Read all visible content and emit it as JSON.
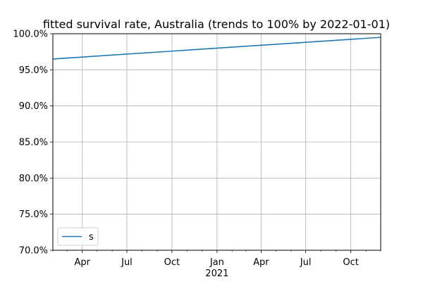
{
  "chart_data": {
    "type": "line",
    "title": "fitted survival rate, Australia (trends to 100% by 2022-01-01)",
    "xlabel": "",
    "ylabel": "",
    "x_range": [
      "2020-02-01",
      "2021-12-01"
    ],
    "y_range": [
      0.7,
      1.0
    ],
    "y_scale": "linear",
    "y_format": "percent_1dp",
    "y_ticks": [
      {
        "value": 0.7,
        "label": "70.0%"
      },
      {
        "value": 0.75,
        "label": "75.0%"
      },
      {
        "value": 0.8,
        "label": "80.0%"
      },
      {
        "value": 0.85,
        "label": "85.0%"
      },
      {
        "value": 0.9,
        "label": "90.0%"
      },
      {
        "value": 0.95,
        "label": "95.0%"
      },
      {
        "value": 1.0,
        "label": "100.0%"
      }
    ],
    "x_major_ticks": [
      {
        "date": "2020-04-01",
        "label": "Apr"
      },
      {
        "date": "2020-07-01",
        "label": "Jul"
      },
      {
        "date": "2020-10-01",
        "label": "Oct"
      },
      {
        "date": "2021-01-01",
        "label": "Jan"
      },
      {
        "date": "2021-04-01",
        "label": "Apr"
      },
      {
        "date": "2021-07-01",
        "label": "Jul"
      },
      {
        "date": "2021-10-01",
        "label": "Oct"
      }
    ],
    "x_minor_ticks": [
      "2020-02-01",
      "2020-03-01",
      "2020-05-01",
      "2020-06-01",
      "2020-08-01",
      "2020-09-01",
      "2020-11-01",
      "2020-12-01",
      "2021-02-01",
      "2021-03-01",
      "2021-05-01",
      "2021-06-01",
      "2021-08-01",
      "2021-09-01",
      "2021-11-01",
      "2021-12-01"
    ],
    "x_secondary_label": {
      "date": "2021-01-01",
      "label": "2021"
    },
    "grid": true,
    "legend": {
      "position": "lower-left",
      "entries": [
        "s"
      ]
    },
    "series": [
      {
        "name": "s",
        "color": "#1f77b4",
        "points": [
          {
            "x": "2020-02-01",
            "y": 0.965
          },
          {
            "x": "2021-12-01",
            "y": 0.995
          }
        ]
      }
    ]
  }
}
